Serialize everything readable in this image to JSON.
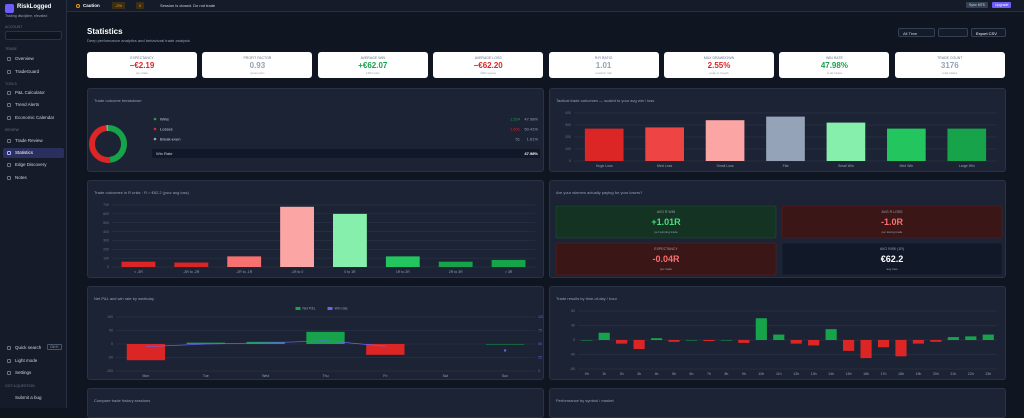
{
  "sidebar": {
    "brand": "RiskLogged",
    "tagline": "Trading discipline, elevated",
    "sections": [
      "ACCOUNT",
      "TRADE",
      "TOOLS",
      "REVIEW"
    ],
    "nav": [
      "Overview",
      "TradeGuard",
      "P&L Calculator",
      "Trend Alerts",
      "Economic Calendar",
      "Trade Review",
      "Statistics",
      "Edge Discovery",
      "Notes"
    ],
    "active": "Statistics",
    "bottom": [
      "Quick search",
      "Light mode",
      "Settings"
    ],
    "shortcut": "Ctrl K",
    "help_heading": "GOT A QUESTION",
    "help_link": "Submit a bug"
  },
  "topbar": {
    "status": "Caution",
    "risk": "-2%",
    "count": "0",
    "message": "Session is closed. Do not trade",
    "buttons": [
      "Sync MT5",
      "Upgrade"
    ]
  },
  "header": {
    "title": "Statistics",
    "subtitle": "Deep performance analytics and behavioral trade analysis",
    "filter": "All Time",
    "export": "Export CSV"
  },
  "kpis": [
    {
      "label": "EXPECTANCY",
      "value": "−€2.19",
      "sub": "per trade",
      "color": "#dc2626"
    },
    {
      "label": "PROFIT FACTOR",
      "value": "0.93",
      "sub": "gross ratio",
      "color": "#94a3b8"
    },
    {
      "label": "AVERAGE WIN",
      "value": "+€62.07",
      "sub": "1524 wins",
      "color": "#16a34a"
    },
    {
      "label": "AVERAGE LOSS",
      "value": "−€62.20",
      "sub": "1601 losses",
      "color": "#dc2626"
    },
    {
      "label": "R:R RATIO",
      "value": "1.01",
      "sub": "reward / risk",
      "color": "#94a3b8"
    },
    {
      "label": "MAX DRAWDOWN",
      "value": "2.55%",
      "sub": "peak to trough",
      "color": "#dc2626"
    },
    {
      "label": "WIN RATE",
      "value": "47.98%",
      "sub": "of all trades",
      "color": "#16a34a"
    },
    {
      "label": "TRADE COUNT",
      "value": "3176",
      "sub": "total trades",
      "color": "#94a3b8"
    }
  ],
  "outcomes": {
    "title": "Trade outcome breakdown",
    "rows": [
      {
        "name": "Wins",
        "count": "1,524",
        "share": 47.98,
        "share_label": "47.98%",
        "color": "#16a34a"
      },
      {
        "name": "Losses",
        "count": "1,601",
        "share": 50.41,
        "share_label": "50.41%",
        "color": "#dc2626"
      },
      {
        "name": "Break-even",
        "count": "51",
        "share": 1.61,
        "share_label": "1.61%",
        "color": "#94a3b8"
      }
    ],
    "summary_label": "Win Rate",
    "summary_value": "47.98%"
  },
  "tactical": {
    "type": "bar",
    "title": "Tactical trade outcomes — scaled to your avg win / loss",
    "categories": [
      "Huge Loss",
      "Med Loss",
      "Small Loss",
      "Flat",
      "Small Win",
      "Med Win",
      "Large Win"
    ],
    "values": [
      270,
      280,
      340,
      370,
      320,
      270,
      270
    ],
    "colors": [
      "#dc2626",
      "#ef4444",
      "#fca5a5",
      "#94a3b8",
      "#86efac",
      "#22c55e",
      "#16a34a"
    ],
    "ylim": [
      0,
      400
    ],
    "yticks": [
      0,
      100,
      200,
      300,
      400
    ],
    "grid": true
  },
  "rdist": {
    "type": "bar",
    "title": "Trade outcomes in R units · R = €62.2 (your avg loss)",
    "categories": [
      "< -3R",
      "-3R to -2R",
      "-2R to -1R",
      "-1R to 0",
      "0 to 1R",
      "1R to 2R",
      "2R to 3R",
      "> 3R"
    ],
    "values": [
      60,
      50,
      120,
      680,
      600,
      120,
      60,
      80
    ],
    "colors": [
      "#dc2626",
      "#dc2626",
      "#f87171",
      "#fca5a5",
      "#86efac",
      "#22c55e",
      "#16a34a",
      "#16a34a"
    ],
    "ylim": [
      0,
      700
    ],
    "yticks": [
      0,
      100,
      200,
      300,
      400,
      500,
      600,
      700
    ],
    "grid": true
  },
  "edge": {
    "title": "Are your winners actually paying for your losers?",
    "tiles": [
      {
        "label": "AVG R WIN",
        "value": "+1.01R",
        "sub": "per winning trade",
        "tone": "green"
      },
      {
        "label": "AVG R LOSS",
        "value": "-1.0R",
        "sub": "per losing trade",
        "tone": "red"
      },
      {
        "label": "EXPECTANCY",
        "value": "-0.04R",
        "sub": "per trade",
        "tone": "red"
      },
      {
        "label": "AVG RISK (1R)",
        "value": "€62.2",
        "sub": "avg loss",
        "tone": "navy"
      }
    ]
  },
  "weekday": {
    "type": "bar",
    "title": "Net P&L and win rate by weekday",
    "categories": [
      "Mon",
      "Tue",
      "Wed",
      "Thu",
      "Fri",
      "Sat",
      "Sun"
    ],
    "series": [
      {
        "name": "Net P&L",
        "color": "#16a34a",
        "neg_color": "#dc2626",
        "values": [
          -60,
          5,
          8,
          45,
          -40,
          null,
          0
        ]
      },
      {
        "name": "Win rate",
        "color": "#6366f1",
        "axis": "y2",
        "values": [
          45,
          50,
          52,
          56,
          46,
          null,
          38
        ]
      }
    ],
    "ylim": [
      -100,
      100
    ],
    "yticks": [
      -100,
      -50,
      0,
      50,
      100
    ],
    "y2lim": [
      0,
      100
    ],
    "y2ticks": [
      0,
      25,
      50,
      75,
      100
    ],
    "grid": true
  },
  "hourly": {
    "type": "bar",
    "title": "Trade results by time-of-day / hour",
    "categories": [
      "0h",
      "1h",
      "2h",
      "3h",
      "4h",
      "5h",
      "6h",
      "7h",
      "8h",
      "9h",
      "10h",
      "11h",
      "12h",
      "13h",
      "14h",
      "15h",
      "16h",
      "17h",
      "18h",
      "19h",
      "20h",
      "21h",
      "22h",
      "23h"
    ],
    "values": [
      0,
      20,
      -10,
      -25,
      5,
      -5,
      0,
      -3,
      0,
      -8,
      60,
      15,
      -10,
      -15,
      30,
      -30,
      -50,
      -20,
      -45,
      -10,
      -5,
      8,
      10,
      15
    ],
    "pos_color": "#16a34a",
    "neg_color": "#dc2626",
    "ylim": [
      -80,
      80
    ],
    "yticks": [
      -80,
      -40,
      0,
      40,
      80
    ],
    "grid": true
  },
  "bottom_panels": [
    "Compare trade history sessions",
    "Performance by symbol / market"
  ]
}
